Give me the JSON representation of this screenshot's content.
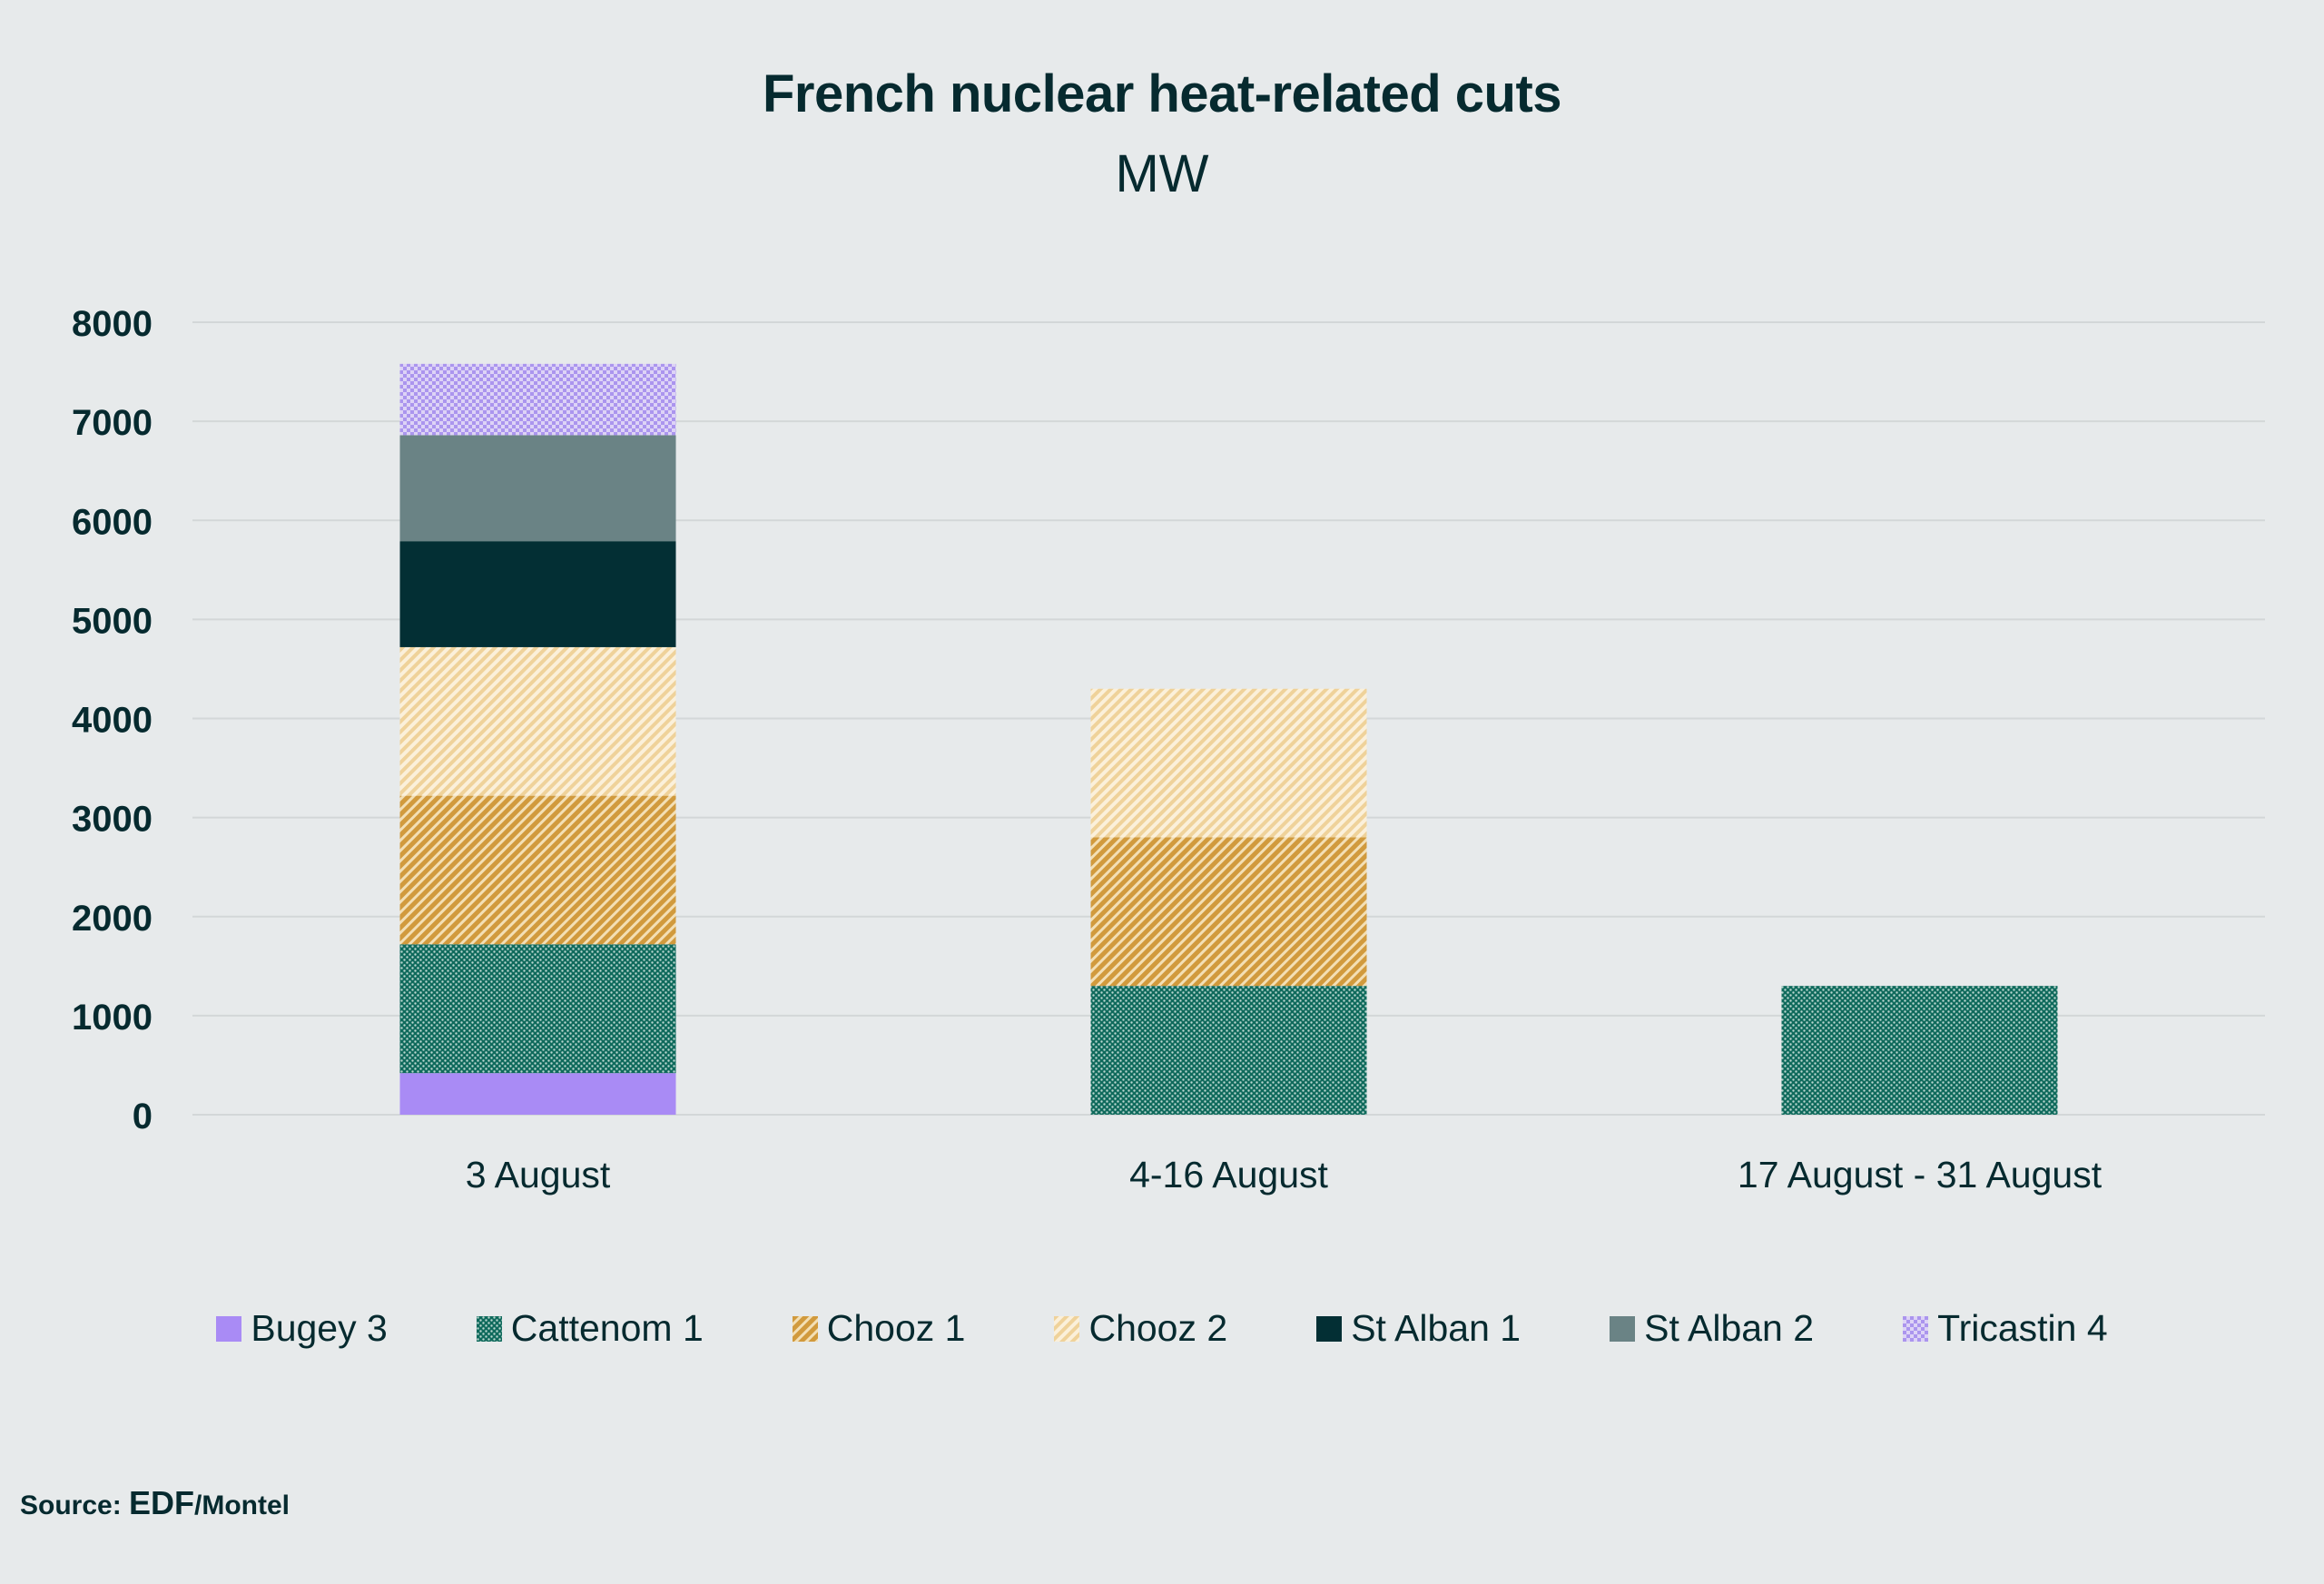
{
  "chart_data": {
    "type": "bar",
    "stacked": true,
    "title": "French nuclear heat-related cuts",
    "subtitle": "MW",
    "categories": [
      "3 August",
      "4-16 August",
      "17 August - 31 August"
    ],
    "ylim": [
      0,
      8000
    ],
    "yticks": [
      0,
      1000,
      2000,
      3000,
      4000,
      5000,
      6000,
      7000,
      8000
    ],
    "grid": true,
    "legend_position": "bottom",
    "series": [
      {
        "name": "Bugey 3",
        "values": [
          420,
          0,
          0
        ],
        "color": "#a98bf5",
        "pattern": "solid"
      },
      {
        "name": "Cattenom 1",
        "values": [
          1300,
          1300,
          1300
        ],
        "color": "#0f6a5c",
        "pattern": "dots"
      },
      {
        "name": "Chooz 1",
        "values": [
          1500,
          1500,
          0
        ],
        "color": "#d6a24a",
        "pattern": "stripes"
      },
      {
        "name": "Chooz 2",
        "values": [
          1500,
          1500,
          0
        ],
        "color": "#f3d8a6",
        "pattern": "stripes-light"
      },
      {
        "name": "St Alban 1",
        "values": [
          1070,
          0,
          0
        ],
        "color": "#032f34",
        "pattern": "solid"
      },
      {
        "name": "St Alban 2",
        "values": [
          1070,
          0,
          0
        ],
        "color": "#6a8385",
        "pattern": "solid"
      },
      {
        "name": "Tricastin 4",
        "values": [
          720,
          0,
          0
        ],
        "color": "#c1b0f0",
        "pattern": "checker"
      }
    ]
  },
  "source": {
    "prefix": "Source: ",
    "brand": "EDF",
    "suffix": "/Montel"
  }
}
